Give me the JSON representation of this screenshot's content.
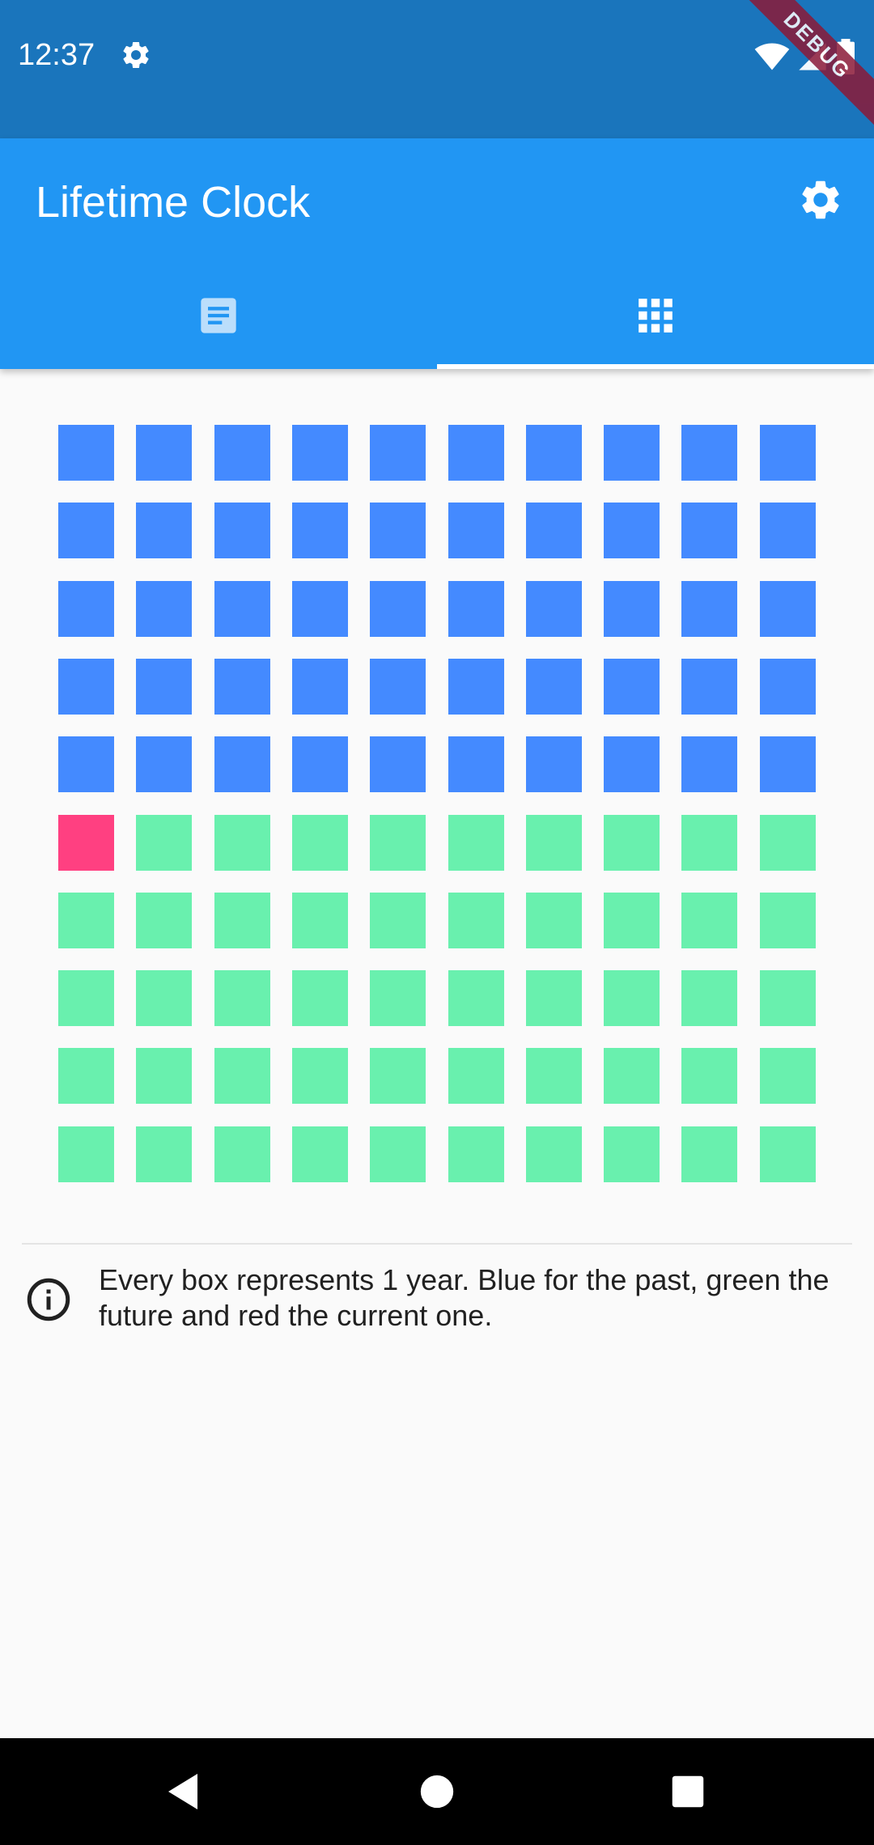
{
  "status_bar": {
    "time": "12:37",
    "debug_banner": "DEBUG",
    "icons": [
      "gear-icon",
      "wifi-icon",
      "signal-icon",
      "battery-icon"
    ]
  },
  "app_bar": {
    "title": "Lifetime Clock",
    "settings_icon": "settings-icon",
    "tabs": [
      {
        "icon": "text-document-icon",
        "selected": false
      },
      {
        "icon": "grid-icon",
        "selected": true
      }
    ]
  },
  "colors": {
    "status_bar": "#1a75bc",
    "app_bar": "#2196f3",
    "past": "#448aff",
    "current": "#ff4081",
    "future": "#69f0ae",
    "background": "#fafafa"
  },
  "grid": {
    "columns": 10,
    "rows": 10,
    "past_years": 50,
    "current_year_index": 50,
    "total_years": 100
  },
  "info": {
    "icon": "info-icon",
    "text": "Every box represents 1 year. Blue for the past, green the future and red the current one."
  },
  "nav_bar": {
    "buttons": [
      "back-icon",
      "home-icon",
      "recents-icon"
    ]
  }
}
